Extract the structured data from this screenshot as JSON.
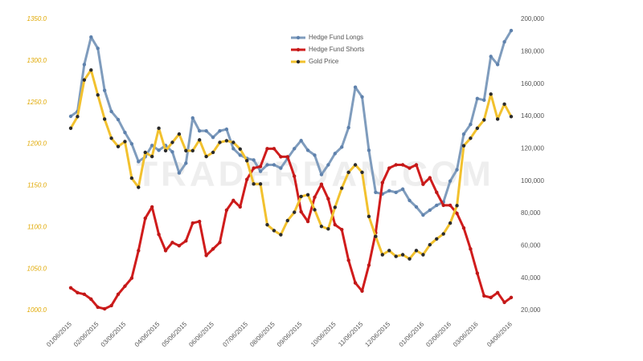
{
  "chart_data": {
    "type": "line",
    "watermark": "TRADERDAN.COM",
    "legend": "top",
    "categories": [
      "01/06/2015",
      null,
      null,
      null,
      "02/06/2015",
      null,
      null,
      null,
      "03/06/2015",
      null,
      null,
      null,
      null,
      "04/06/2015",
      null,
      null,
      null,
      "05/06/2015",
      null,
      null,
      null,
      "06/06/2015",
      null,
      null,
      null,
      null,
      "07/06/2015",
      null,
      null,
      null,
      "08/06/2015",
      null,
      null,
      null,
      "09/06/2015",
      null,
      null,
      null,
      null,
      "10/06/2015",
      null,
      null,
      null,
      "11/06/2015",
      null,
      null,
      null,
      "12/06/2015",
      null,
      null,
      null,
      null,
      "01/06/2016",
      null,
      null,
      null,
      "02/06/2016",
      null,
      null,
      null,
      "03/06/2016",
      null,
      null,
      null,
      null,
      "04/06/2016"
    ],
    "ylim": [
      1000,
      1350
    ],
    "yticks": [
      {
        "value": 1000,
        "label": "1000.0"
      },
      {
        "value": 1050,
        "label": "1050.0"
      },
      {
        "value": 1100,
        "label": "1100.0"
      },
      {
        "value": 1150,
        "label": "1150.0"
      },
      {
        "value": 1200,
        "label": "1200.0"
      },
      {
        "value": 1250,
        "label": "1250.0"
      },
      {
        "value": 1300,
        "label": "1300.0"
      },
      {
        "value": 1350,
        "label": "1350.0"
      }
    ],
    "y2lim": [
      20000,
      200000
    ],
    "y2ticks": [
      {
        "value": 20000,
        "label": "20,000"
      },
      {
        "value": 40000,
        "label": "40,000"
      },
      {
        "value": 60000,
        "label": "60,000"
      },
      {
        "value": 80000,
        "label": "80,000"
      },
      {
        "value": 100000,
        "label": "100,000"
      },
      {
        "value": 120000,
        "label": "120,000"
      },
      {
        "value": 140000,
        "label": "140,000"
      },
      {
        "value": 160000,
        "label": "160,000"
      },
      {
        "value": 180000,
        "label": "180,000"
      },
      {
        "value": 200000,
        "label": "200,000"
      }
    ],
    "series": [
      {
        "name": "Hedge Fund Longs",
        "color": "#7f9cbd",
        "marker_color": "#5f82ad",
        "axis": "y2",
        "values": [
          140000,
          143000,
          172000,
          189000,
          182000,
          156000,
          143000,
          138000,
          130000,
          123000,
          112000,
          115000,
          122000,
          119000,
          122000,
          118000,
          105000,
          111000,
          139000,
          131000,
          131000,
          127000,
          131000,
          132000,
          120000,
          116000,
          114000,
          113000,
          106000,
          110000,
          110000,
          108000,
          114000,
          120000,
          125000,
          119000,
          116000,
          104000,
          110000,
          117000,
          121000,
          133000,
          158000,
          152000,
          119000,
          93000,
          92000,
          94000,
          93000,
          95000,
          88000,
          84000,
          79000,
          82000,
          85000,
          87000,
          100000,
          107000,
          129000,
          135000,
          151000,
          150000,
          177000,
          172000,
          186000,
          193000
        ]
      },
      {
        "name": "Hedge Fund Shorts",
        "color": "#d01c1c",
        "marker_color": "#c01818",
        "axis": "y2",
        "values": [
          34000,
          31000,
          30000,
          27000,
          22000,
          21000,
          23000,
          30000,
          35000,
          40000,
          57000,
          77000,
          84000,
          67000,
          57000,
          62000,
          60000,
          63000,
          74000,
          75000,
          54000,
          58000,
          62000,
          82000,
          88000,
          84000,
          101000,
          108000,
          109000,
          120000,
          120000,
          115000,
          115000,
          103000,
          81000,
          75000,
          90000,
          98000,
          89000,
          73000,
          70000,
          51000,
          37000,
          32000,
          48000,
          68000,
          99000,
          108000,
          110000,
          110000,
          108000,
          110000,
          98000,
          102000,
          93000,
          85000,
          85000,
          80000,
          71000,
          58000,
          43000,
          29000,
          28000,
          31000,
          25000,
          28000
        ]
      },
      {
        "name": "Gold Price",
        "color": "#f2c12e",
        "marker_color": "#2b2b2b",
        "values": [
          1219,
          1233,
          1277,
          1289,
          1259,
          1230,
          1207,
          1197,
          1203,
          1159,
          1148,
          1190,
          1185,
          1219,
          1192,
          1202,
          1212,
          1192,
          1192,
          1205,
          1185,
          1190,
          1202,
          1204,
          1202,
          1194,
          1180,
          1152,
          1152,
          1103,
          1096,
          1091,
          1108,
          1118,
          1137,
          1139,
          1121,
          1101,
          1098,
          1124,
          1147,
          1166,
          1175,
          1166,
          1113,
          1089,
          1067,
          1072,
          1065,
          1067,
          1062,
          1072,
          1067,
          1079,
          1086,
          1092,
          1105,
          1126,
          1198,
          1207,
          1219,
          1229,
          1260,
          1230,
          1248,
          1233
        ]
      }
    ]
  }
}
